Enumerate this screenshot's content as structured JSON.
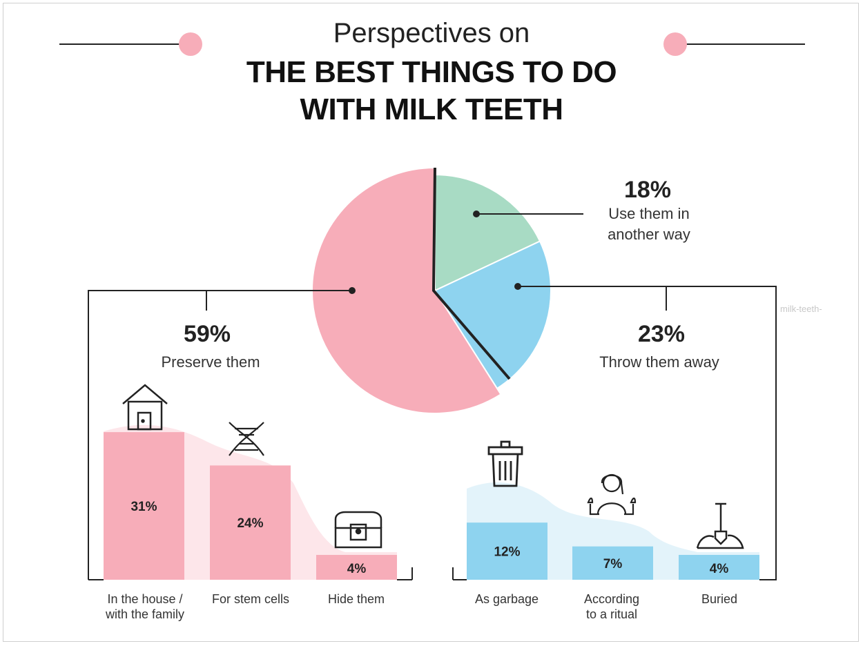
{
  "header": {
    "subtitle": "Perspectives on",
    "title_line1": "THE BEST THINGS TO DO",
    "title_line2": "WITH MILK TEETH"
  },
  "colors": {
    "pink": "#f7adb9",
    "blue": "#8ed3ef",
    "green": "#a8dbc4",
    "pink_bg": "#fde6ea",
    "blue_bg": "#e3f3fa"
  },
  "watermark": "milk-teeth-",
  "chart_data": [
    {
      "type": "pie",
      "slices": [
        {
          "label": "Preserve them",
          "value": 59,
          "display": "59%",
          "color": "#f7adb9"
        },
        {
          "label": "Use them in another way",
          "value": 18,
          "display": "18%",
          "color": "#a8dbc4"
        },
        {
          "label": "Throw them away",
          "value": 23,
          "display": "23%",
          "color": "#8ed3ef"
        }
      ]
    },
    {
      "type": "bar",
      "group": "Preserve them",
      "categories": [
        "In the house / with the family",
        "For stem cells",
        "Hide them"
      ],
      "values": [
        31,
        24,
        4
      ],
      "labels": [
        "31%",
        "24%",
        "4%"
      ],
      "icons": [
        "house-icon",
        "dna-icon",
        "treasure-chest-icon"
      ],
      "color": "#f7adb9"
    },
    {
      "type": "bar",
      "group": "Throw them away",
      "categories": [
        "As garbage",
        "According to a ritual",
        "Buried"
      ],
      "values": [
        12,
        7,
        4
      ],
      "labels": [
        "12%",
        "7%",
        "4%"
      ],
      "icons": [
        "trash-can-icon",
        "ritual-person-icon",
        "shovel-icon"
      ],
      "color": "#8ed3ef"
    }
  ],
  "text": {
    "preserve_pct": "59%",
    "preserve_label": "Preserve them",
    "other_pct": "18%",
    "other_label_1": "Use them in",
    "other_label_2": "another way",
    "throw_pct": "23%",
    "throw_label": "Throw them away",
    "cat_house_1": "In the house /",
    "cat_house_2": "with the family",
    "cat_stem": "For stem cells",
    "cat_hide": "Hide them",
    "cat_garbage": "As garbage",
    "cat_ritual_1": "According",
    "cat_ritual_2": "to a ritual",
    "cat_buried": "Buried"
  }
}
